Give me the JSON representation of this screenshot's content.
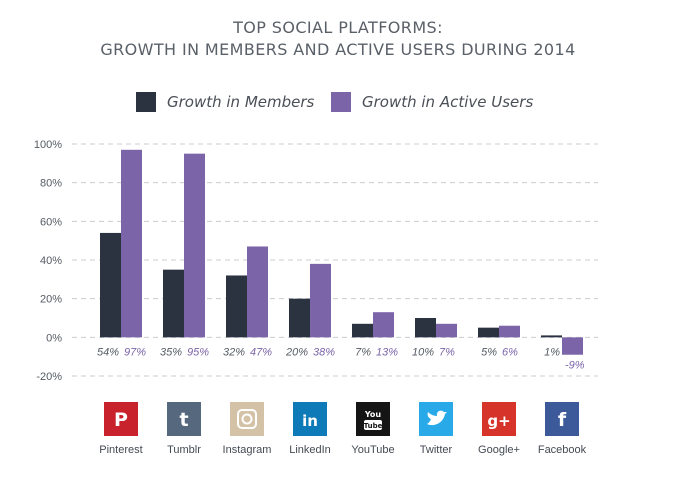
{
  "chart_data": {
    "type": "bar",
    "title": "TOP SOCIAL PLATFORMS:",
    "subtitle": "GROWTH IN MEMBERS AND ACTIVE USERS DURING 2014",
    "categories": [
      "Pinterest",
      "Tumblr",
      "Instagram",
      "LinkedIn",
      "YouTube",
      "Twitter",
      "Google+",
      "Facebook"
    ],
    "series": [
      {
        "name": "Growth in Members",
        "color": "#2b3340",
        "values": [
          54,
          35,
          32,
          20,
          7,
          10,
          5,
          1
        ],
        "labels": [
          "54%",
          "35%",
          "32%",
          "20%",
          "7%",
          "10%",
          "5%",
          "1%"
        ]
      },
      {
        "name": "Growth in Active Users",
        "color": "#7b64a8",
        "values": [
          97,
          95,
          47,
          38,
          13,
          7,
          6,
          -9
        ],
        "labels": [
          "97%",
          "95%",
          "47%",
          "38%",
          "13%",
          "7%",
          "6%",
          "-9%"
        ]
      }
    ],
    "yticks": [
      "100%",
      "80%",
      "60%",
      "40%",
      "20%",
      "0%",
      "-20%"
    ],
    "ytick_values": [
      100,
      80,
      60,
      40,
      20,
      0,
      -20
    ],
    "ylim": [
      -20,
      100
    ],
    "grid": true,
    "legend_position": "top"
  },
  "platforms": [
    {
      "name": "Pinterest",
      "icon": "pinterest-icon",
      "glyph": "P",
      "color": "#c8232c"
    },
    {
      "name": "Tumblr",
      "icon": "tumblr-icon",
      "glyph": "t",
      "color": "#56687e"
    },
    {
      "name": "Instagram",
      "icon": "instagram-icon",
      "glyph": "",
      "color": "#d3c2a6"
    },
    {
      "name": "LinkedIn",
      "icon": "linkedin-icon",
      "glyph": "in",
      "color": "#0e7bb8"
    },
    {
      "name": "YouTube",
      "icon": "youtube-icon",
      "glyph": "You Tube",
      "color": "#151515"
    },
    {
      "name": "Twitter",
      "icon": "twitter-icon",
      "glyph": "",
      "color": "#29a9e8"
    },
    {
      "name": "Google+",
      "icon": "google-plus-icon",
      "glyph": "g+",
      "color": "#d6332b"
    },
    {
      "name": "Facebook",
      "icon": "facebook-icon",
      "glyph": "f",
      "color": "#3c5a99"
    }
  ]
}
